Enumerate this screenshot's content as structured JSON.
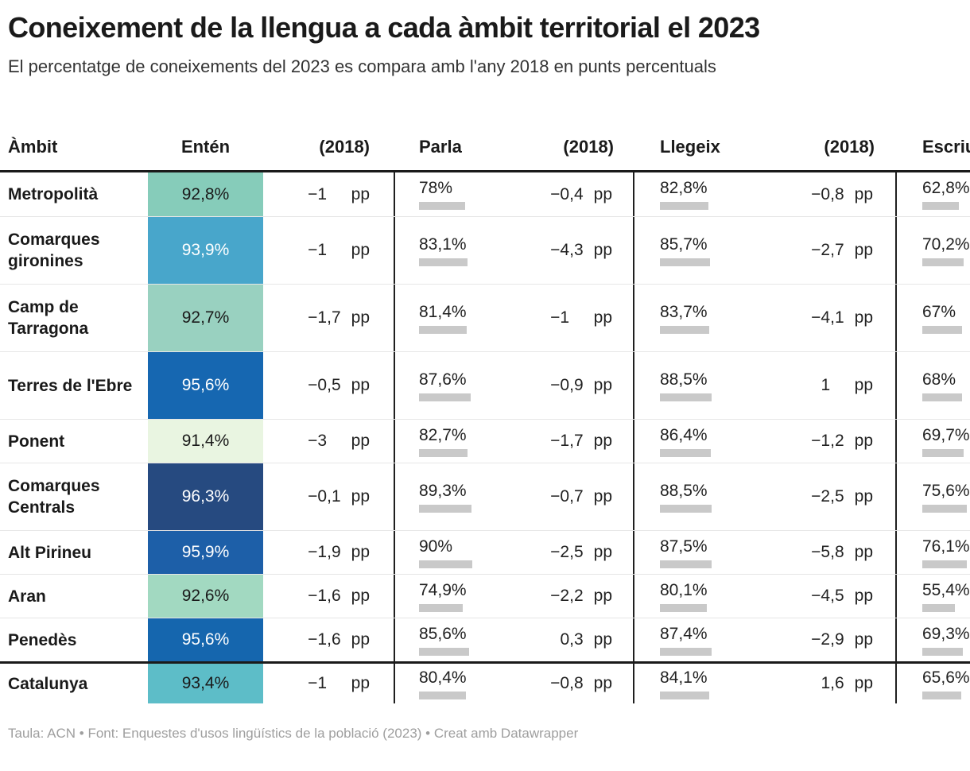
{
  "title": "Coneixement de la llengua a cada àmbit territorial el 2023",
  "subtitle": "El percentatge de coneixements del 2023 es compara amb l'any 2018 en punts percentuals",
  "footer": "Taula: ACN • Font: Enquestes d'usos lingüístics de la població (2023) • Creat amb Datawrapper",
  "table": {
    "columns": [
      "Àmbit",
      "Entén",
      "(2018)",
      "Parla",
      "(2018)",
      "Llegeix",
      "(2018)",
      "Escriu"
    ],
    "pp_label": "pp",
    "bar_color": "#c9c9c9",
    "rows": [
      {
        "ambit": "Metropolità",
        "enten": "92,8%",
        "enten_color": "#86ccba",
        "enten_text_light": false,
        "enten_delta": "−1",
        "parla": "78%",
        "parla_val": 78,
        "parla_delta": "−0,4",
        "llegeix": "82,8%",
        "llegeix_val": 82.8,
        "llegeix_delta": "−0,8",
        "escriu": "62,8%",
        "escriu_val": 62.8,
        "total": false
      },
      {
        "ambit": "Comarques gironines",
        "enten": "93,9%",
        "enten_color": "#48a6cb",
        "enten_text_light": true,
        "enten_delta": "−1",
        "parla": "83,1%",
        "parla_val": 83.1,
        "parla_delta": "−4,3",
        "llegeix": "85,7%",
        "llegeix_val": 85.7,
        "llegeix_delta": "−2,7",
        "escriu": "70,2%",
        "escriu_val": 70.2,
        "total": false
      },
      {
        "ambit": "Camp de Tarragona",
        "enten": "92,7%",
        "enten_color": "#99d1c0",
        "enten_text_light": false,
        "enten_delta": "−1,7",
        "parla": "81,4%",
        "parla_val": 81.4,
        "parla_delta": "−1",
        "llegeix": "83,7%",
        "llegeix_val": 83.7,
        "llegeix_delta": "−4,1",
        "escriu": "67%",
        "escriu_val": 67,
        "total": false
      },
      {
        "ambit": "Terres de l'Ebre",
        "enten": "95,6%",
        "enten_color": "#1667b1",
        "enten_text_light": true,
        "enten_delta": "−0,5",
        "parla": "87,6%",
        "parla_val": 87.6,
        "parla_delta": "−0,9",
        "llegeix": "88,5%",
        "llegeix_val": 88.5,
        "llegeix_delta": "1",
        "escriu": "68%",
        "escriu_val": 68,
        "total": false
      },
      {
        "ambit": "Ponent",
        "enten": "91,4%",
        "enten_color": "#e9f5e1",
        "enten_text_light": false,
        "enten_delta": "−3",
        "parla": "82,7%",
        "parla_val": 82.7,
        "parla_delta": "−1,7",
        "llegeix": "86,4%",
        "llegeix_val": 86.4,
        "llegeix_delta": "−1,2",
        "escriu": "69,7%",
        "escriu_val": 69.7,
        "total": false
      },
      {
        "ambit": "Comarques Centrals",
        "enten": "96,3%",
        "enten_color": "#264a80",
        "enten_text_light": true,
        "enten_delta": "−0,1",
        "parla": "89,3%",
        "parla_val": 89.3,
        "parla_delta": "−0,7",
        "llegeix": "88,5%",
        "llegeix_val": 88.5,
        "llegeix_delta": "−2,5",
        "escriu": "75,6%",
        "escriu_val": 75.6,
        "total": false
      },
      {
        "ambit": "Alt Pirineu",
        "enten": "95,9%",
        "enten_color": "#1d5fa8",
        "enten_text_light": true,
        "enten_delta": "−1,9",
        "parla": "90%",
        "parla_val": 90,
        "parla_delta": "−2,5",
        "llegeix": "87,5%",
        "llegeix_val": 87.5,
        "llegeix_delta": "−5,8",
        "escriu": "76,1%",
        "escriu_val": 76.1,
        "total": false
      },
      {
        "ambit": "Aran",
        "enten": "92,6%",
        "enten_color": "#a2d9c1",
        "enten_text_light": false,
        "enten_delta": "−1,6",
        "parla": "74,9%",
        "parla_val": 74.9,
        "parla_delta": "−2,2",
        "llegeix": "80,1%",
        "llegeix_val": 80.1,
        "llegeix_delta": "−4,5",
        "escriu": "55,4%",
        "escriu_val": 55.4,
        "total": false
      },
      {
        "ambit": "Penedès",
        "enten": "95,6%",
        "enten_color": "#1566ae",
        "enten_text_light": true,
        "enten_delta": "−1,6",
        "parla": "85,6%",
        "parla_val": 85.6,
        "parla_delta": "0,3",
        "llegeix": "87,4%",
        "llegeix_val": 87.4,
        "llegeix_delta": "−2,9",
        "escriu": "69,3%",
        "escriu_val": 69.3,
        "total": false
      },
      {
        "ambit": "Catalunya",
        "enten": "93,4%",
        "enten_color": "#5dbdc8",
        "enten_text_light": false,
        "enten_delta": "−1",
        "parla": "80,4%",
        "parla_val": 80.4,
        "parla_delta": "−0,8",
        "llegeix": "84,1%",
        "llegeix_val": 84.1,
        "llegeix_delta": "1,6",
        "escriu": "65,6%",
        "escriu_val": 65.6,
        "total": true
      }
    ]
  },
  "chart_data": {
    "type": "table",
    "title": "Coneixement de la llengua a cada àmbit territorial el 2023",
    "subtitle": "El percentatge de coneixements del 2023 es compara amb l'any 2018 en punts percentuals",
    "columns": [
      "Àmbit",
      "Entén",
      "(2018) diff pp",
      "Parla",
      "(2018) diff pp",
      "Llegeix",
      "(2018) diff pp",
      "Escriu"
    ],
    "rows": [
      {
        "ambit": "Metropolità",
        "enten": 92.8,
        "enten_2018_diff_pp": -1,
        "parla": 78,
        "parla_2018_diff_pp": -0.4,
        "llegeix": 82.8,
        "llegeix_2018_diff_pp": -0.8,
        "escriu": 62.8
      },
      {
        "ambit": "Comarques gironines",
        "enten": 93.9,
        "enten_2018_diff_pp": -1,
        "parla": 83.1,
        "parla_2018_diff_pp": -4.3,
        "llegeix": 85.7,
        "llegeix_2018_diff_pp": -2.7,
        "escriu": 70.2
      },
      {
        "ambit": "Camp de Tarragona",
        "enten": 92.7,
        "enten_2018_diff_pp": -1.7,
        "parla": 81.4,
        "parla_2018_diff_pp": -1,
        "llegeix": 83.7,
        "llegeix_2018_diff_pp": -4.1,
        "escriu": 67
      },
      {
        "ambit": "Terres de l'Ebre",
        "enten": 95.6,
        "enten_2018_diff_pp": -0.5,
        "parla": 87.6,
        "parla_2018_diff_pp": -0.9,
        "llegeix": 88.5,
        "llegeix_2018_diff_pp": 1,
        "escriu": 68
      },
      {
        "ambit": "Ponent",
        "enten": 91.4,
        "enten_2018_diff_pp": -3,
        "parla": 82.7,
        "parla_2018_diff_pp": -1.7,
        "llegeix": 86.4,
        "llegeix_2018_diff_pp": -1.2,
        "escriu": 69.7
      },
      {
        "ambit": "Comarques Centrals",
        "enten": 96.3,
        "enten_2018_diff_pp": -0.1,
        "parla": 89.3,
        "parla_2018_diff_pp": -0.7,
        "llegeix": 88.5,
        "llegeix_2018_diff_pp": -2.5,
        "escriu": 75.6
      },
      {
        "ambit": "Alt Pirineu",
        "enten": 95.9,
        "enten_2018_diff_pp": -1.9,
        "parla": 90,
        "parla_2018_diff_pp": -2.5,
        "llegeix": 87.5,
        "llegeix_2018_diff_pp": -5.8,
        "escriu": 76.1
      },
      {
        "ambit": "Aran",
        "enten": 92.6,
        "enten_2018_diff_pp": -1.6,
        "parla": 74.9,
        "parla_2018_diff_pp": -2.2,
        "llegeix": 80.1,
        "llegeix_2018_diff_pp": -4.5,
        "escriu": 55.4
      },
      {
        "ambit": "Penedès",
        "enten": 95.6,
        "enten_2018_diff_pp": -1.6,
        "parla": 85.6,
        "parla_2018_diff_pp": 0.3,
        "llegeix": 87.4,
        "llegeix_2018_diff_pp": -2.9,
        "escriu": 69.3
      },
      {
        "ambit": "Catalunya",
        "enten": 93.4,
        "enten_2018_diff_pp": -1,
        "parla": 80.4,
        "parla_2018_diff_pp": -0.8,
        "llegeix": 84.1,
        "llegeix_2018_diff_pp": 1.6,
        "escriu": 65.6
      }
    ],
    "heatmap_column": "Entén",
    "bar_columns": [
      "Parla",
      "Llegeix",
      "Escriu"
    ],
    "legend_position": "none",
    "grid": "rows"
  }
}
